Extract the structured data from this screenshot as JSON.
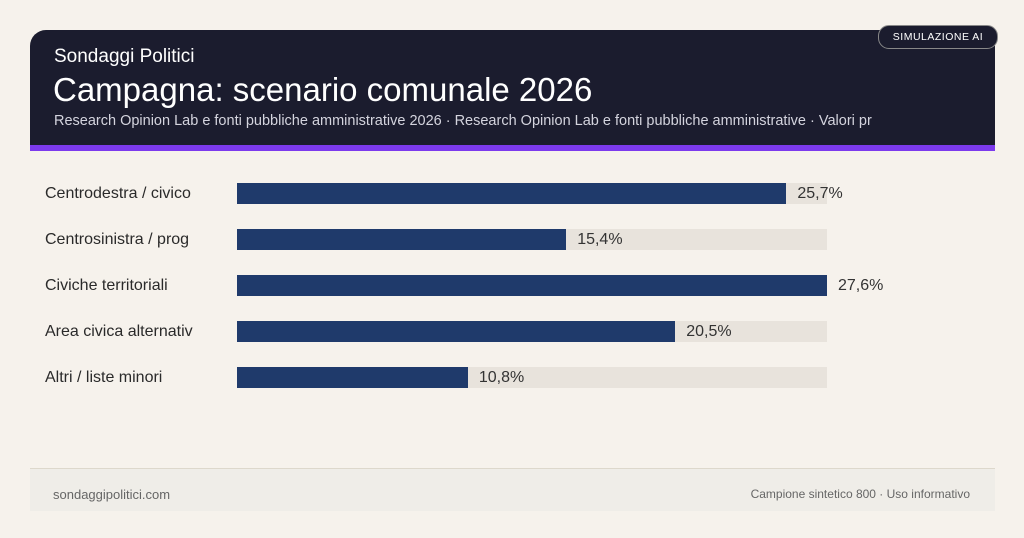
{
  "header": {
    "brand": "Sondaggi Politici",
    "title": "Campagna: scenario comunale 2026",
    "subtitle": "Research Opinion Lab e fonti pubbliche amministrative 2026 · Research Opinion Lab e fonti pubbliche amministrative · Valori pr",
    "badge": "SIMULAZIONE AI"
  },
  "chart_data": {
    "type": "bar",
    "orientation": "horizontal",
    "categories": [
      "Centrodestra / civico",
      "Centrosinistra / prog",
      "Civiche territoriali",
      "Area civica alternativ",
      "Altri / liste minori"
    ],
    "values": [
      25.7,
      15.4,
      27.6,
      20.5,
      10.8
    ],
    "value_labels": [
      "25,7%",
      "15,4%",
      "27,6%",
      "20,5%",
      "10,8%"
    ],
    "xlim": [
      0,
      27.6
    ],
    "grid": false,
    "colors": {
      "bar": "#1f3a6b",
      "track": "#e8e3dc"
    }
  },
  "footer": {
    "left": "sondaggipolitici.com",
    "right": "Campione sintetico 800 · Uso informativo"
  }
}
